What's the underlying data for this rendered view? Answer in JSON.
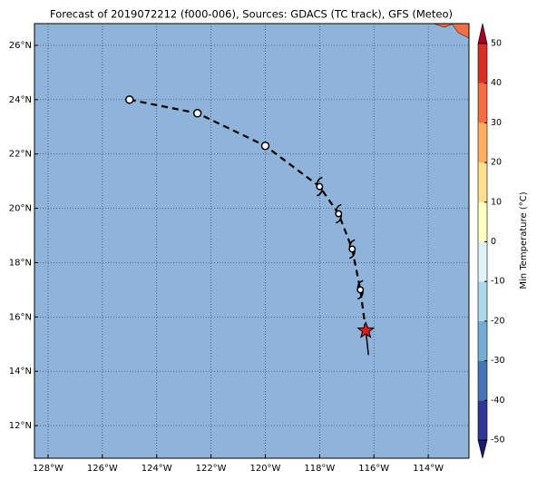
{
  "chart_data": {
    "type": "map",
    "title": "Forecast of 2019072212 (f000-006), Sources: GDACS (TC track), GFS (Meteo)",
    "xlim": [
      -128.5,
      -112.5
    ],
    "ylim": [
      10.8,
      26.8
    ],
    "xticks": [
      {
        "value": -128,
        "label": "128°W"
      },
      {
        "value": -126,
        "label": "126°W"
      },
      {
        "value": -124,
        "label": "124°W"
      },
      {
        "value": -122,
        "label": "122°W"
      },
      {
        "value": -120,
        "label": "120°W"
      },
      {
        "value": -118,
        "label": "118°W"
      },
      {
        "value": -116,
        "label": "116°W"
      },
      {
        "value": -114,
        "label": "114°W"
      }
    ],
    "yticks": [
      {
        "value": 12,
        "label": "12°N"
      },
      {
        "value": 14,
        "label": "14°N"
      },
      {
        "value": 16,
        "label": "16°N"
      },
      {
        "value": 18,
        "label": "18°N"
      },
      {
        "value": 20,
        "label": "20°N"
      },
      {
        "value": 22,
        "label": "22°N"
      },
      {
        "value": 24,
        "label": "24°N"
      },
      {
        "value": 26,
        "label": "26°N"
      }
    ],
    "grid": true,
    "ocean_color": "#8fb3d9",
    "track": {
      "lon": [
        -125,
        -122.5,
        -120,
        -118,
        -117.3,
        -116.8,
        -116.5,
        -116.3
      ],
      "lat": [
        24,
        23.5,
        22.3,
        20.8,
        19.8,
        18.5,
        17,
        15.5
      ],
      "marker": [
        "circle",
        "circle",
        "circle",
        "storm",
        "storm",
        "storm",
        "storm",
        "star"
      ],
      "star_color": "#e31a1c"
    },
    "tail": {
      "lon": [
        -116.3,
        -116.2
      ],
      "lat": [
        15.5,
        14.6
      ]
    },
    "colorbar": {
      "label": "Min Temperature (°C)",
      "lim": [
        -50,
        50
      ],
      "ticks": [
        -50,
        -40,
        -30,
        -20,
        -10,
        0,
        10,
        20,
        30,
        40,
        50
      ],
      "colors": [
        "#313695",
        "#4575b4",
        "#74add1",
        "#abd9e9",
        "#e0f3f8",
        "#ffffbf",
        "#fee090",
        "#fdae61",
        "#f46d43",
        "#d73027"
      ],
      "under": "#1a1a6e",
      "over": "#a50026"
    }
  }
}
